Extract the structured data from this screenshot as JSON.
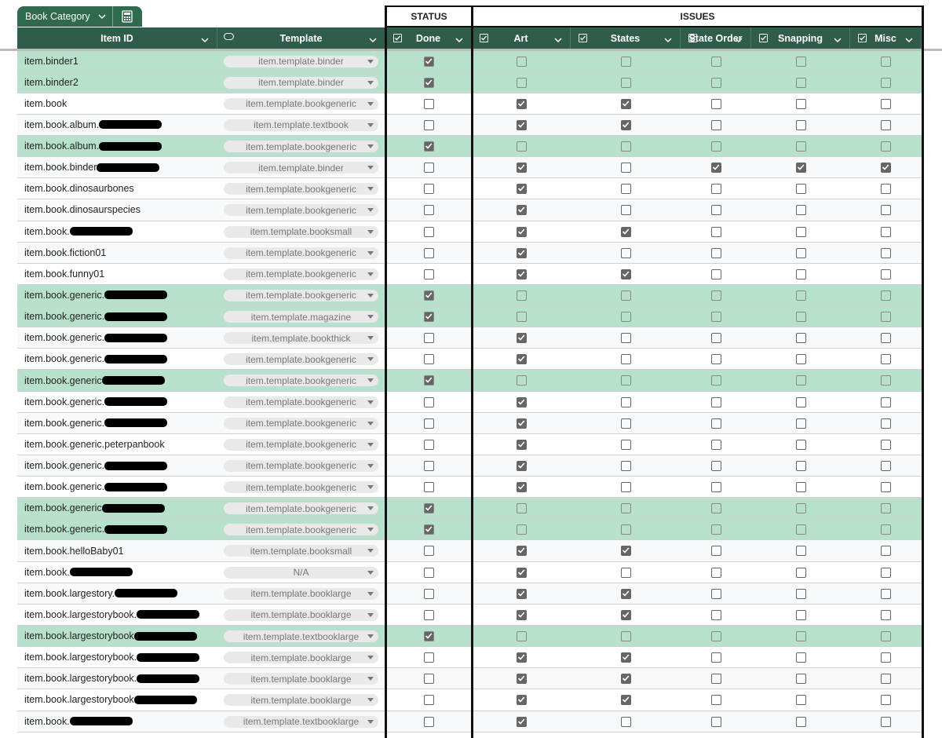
{
  "filter_tab": "Book Category",
  "groups": [
    "STATUS",
    "ISSUES"
  ],
  "columns": [
    "Item ID",
    "Template",
    "Done",
    "Art",
    "States",
    "State Order",
    "Snapping",
    "Misc"
  ],
  "rows": [
    {
      "id": "item.binder1",
      "template": "item.template.binder",
      "done": true,
      "issues": [
        false,
        false,
        false,
        false,
        false
      ]
    },
    {
      "id": "item.binder2",
      "template": "item.template.binder",
      "done": true,
      "issues": [
        false,
        false,
        false,
        false,
        false
      ]
    },
    {
      "id": "item.book",
      "template": "item.template.bookgeneric",
      "done": false,
      "issues": [
        true,
        true,
        false,
        false,
        false
      ]
    },
    {
      "id": "item.book.album.",
      "redacted": true,
      "template": "item.template.textbook",
      "done": false,
      "issues": [
        true,
        true,
        false,
        false,
        false
      ]
    },
    {
      "id": "item.book.album.",
      "redacted": true,
      "template": "item.template.bookgeneric",
      "done": true,
      "issues": [
        false,
        false,
        false,
        false,
        false
      ]
    },
    {
      "id": "item.book.binder",
      "redacted": true,
      "template": "item.template.binder",
      "done": false,
      "issues": [
        true,
        false,
        true,
        true,
        true
      ]
    },
    {
      "id": "item.book.dinosaurbones",
      "template": "item.template.bookgeneric",
      "done": false,
      "issues": [
        true,
        false,
        false,
        false,
        false
      ]
    },
    {
      "id": "item.book.dinosaurspecies",
      "template": "item.template.bookgeneric",
      "done": false,
      "issues": [
        true,
        false,
        false,
        false,
        false
      ]
    },
    {
      "id": "item.book.",
      "redacted": true,
      "template": "item.template.booksmall",
      "done": false,
      "issues": [
        true,
        true,
        false,
        false,
        false
      ]
    },
    {
      "id": "item.book.fiction01",
      "template": "item.template.bookgeneric",
      "done": false,
      "issues": [
        true,
        false,
        false,
        false,
        false
      ]
    },
    {
      "id": "item.book.funny01",
      "template": "item.template.bookgeneric",
      "done": false,
      "issues": [
        true,
        true,
        false,
        false,
        false
      ]
    },
    {
      "id": "item.book.generic.",
      "redacted": true,
      "template": "item.template.bookgeneric",
      "done": true,
      "issues": [
        false,
        false,
        false,
        false,
        false
      ]
    },
    {
      "id": "item.book.generic.",
      "redacted": true,
      "template": "item.template.magazine",
      "done": true,
      "issues": [
        false,
        false,
        false,
        false,
        false
      ]
    },
    {
      "id": "item.book.generic.",
      "redacted": true,
      "template": "item.template.bookthick",
      "done": false,
      "issues": [
        true,
        false,
        false,
        false,
        false
      ]
    },
    {
      "id": "item.book.generic.",
      "redacted": true,
      "template": "item.template.bookgeneric",
      "done": false,
      "issues": [
        true,
        false,
        false,
        false,
        false
      ]
    },
    {
      "id": "item.book.generic",
      "redacted": true,
      "template": "item.template.bookgeneric",
      "done": true,
      "issues": [
        false,
        false,
        false,
        false,
        false
      ]
    },
    {
      "id": "item.book.generic.",
      "redacted": true,
      "template": "item.template.bookgeneric",
      "done": false,
      "issues": [
        true,
        false,
        false,
        false,
        false
      ]
    },
    {
      "id": "item.book.generic.",
      "redacted": true,
      "template": "item.template.bookgeneric",
      "done": false,
      "issues": [
        true,
        false,
        false,
        false,
        false
      ]
    },
    {
      "id": "item.book.generic.peterpanbook",
      "template": "item.template.bookgeneric",
      "done": false,
      "issues": [
        true,
        false,
        false,
        false,
        false
      ]
    },
    {
      "id": "item.book.generic.",
      "redacted": true,
      "template": "item.template.bookgeneric",
      "done": false,
      "issues": [
        true,
        false,
        false,
        false,
        false
      ]
    },
    {
      "id": "item.book.generic.",
      "redacted": true,
      "template": "item.template.bookgeneric",
      "done": false,
      "issues": [
        true,
        false,
        false,
        false,
        false
      ]
    },
    {
      "id": "item.book.generic",
      "redacted": true,
      "template": "item.template.bookgeneric",
      "done": true,
      "issues": [
        false,
        false,
        false,
        false,
        false
      ]
    },
    {
      "id": "item.book.generic.",
      "redacted": true,
      "template": "item.template.bookgeneric",
      "done": true,
      "issues": [
        false,
        false,
        false,
        false,
        false
      ]
    },
    {
      "id": "item.book.helloBaby01",
      "template": "item.template.booksmall",
      "done": false,
      "issues": [
        true,
        true,
        false,
        false,
        false
      ]
    },
    {
      "id": "item.book.",
      "redacted": true,
      "template": "N/A",
      "done": false,
      "issues": [
        true,
        false,
        false,
        false,
        false
      ]
    },
    {
      "id": "item.book.largestory.",
      "redacted": true,
      "template": "item.template.booklarge",
      "done": false,
      "issues": [
        true,
        true,
        false,
        false,
        false
      ]
    },
    {
      "id": "item.book.largestorybook.",
      "redacted": true,
      "template": "item.template.booklarge",
      "done": false,
      "issues": [
        true,
        true,
        false,
        false,
        false
      ]
    },
    {
      "id": "item.book.largestorybook",
      "redacted": true,
      "template": "item.template.textbooklarge",
      "done": true,
      "issues": [
        false,
        false,
        false,
        false,
        false
      ]
    },
    {
      "id": "item.book.largestorybook.",
      "redacted": true,
      "template": "item.template.booklarge",
      "done": false,
      "issues": [
        true,
        true,
        false,
        false,
        false
      ]
    },
    {
      "id": "item.book.largestorybook.",
      "redacted": true,
      "template": "item.template.booklarge",
      "done": false,
      "issues": [
        true,
        true,
        false,
        false,
        false
      ]
    },
    {
      "id": "item.book.largestorybook",
      "redacted": true,
      "template": "item.template.booklarge",
      "done": false,
      "issues": [
        true,
        true,
        false,
        false,
        false
      ]
    },
    {
      "id": "item.book.",
      "redacted": true,
      "template": "item.template.textbooklarge",
      "done": false,
      "issues": [
        true,
        false,
        false,
        false,
        false
      ]
    }
  ]
}
